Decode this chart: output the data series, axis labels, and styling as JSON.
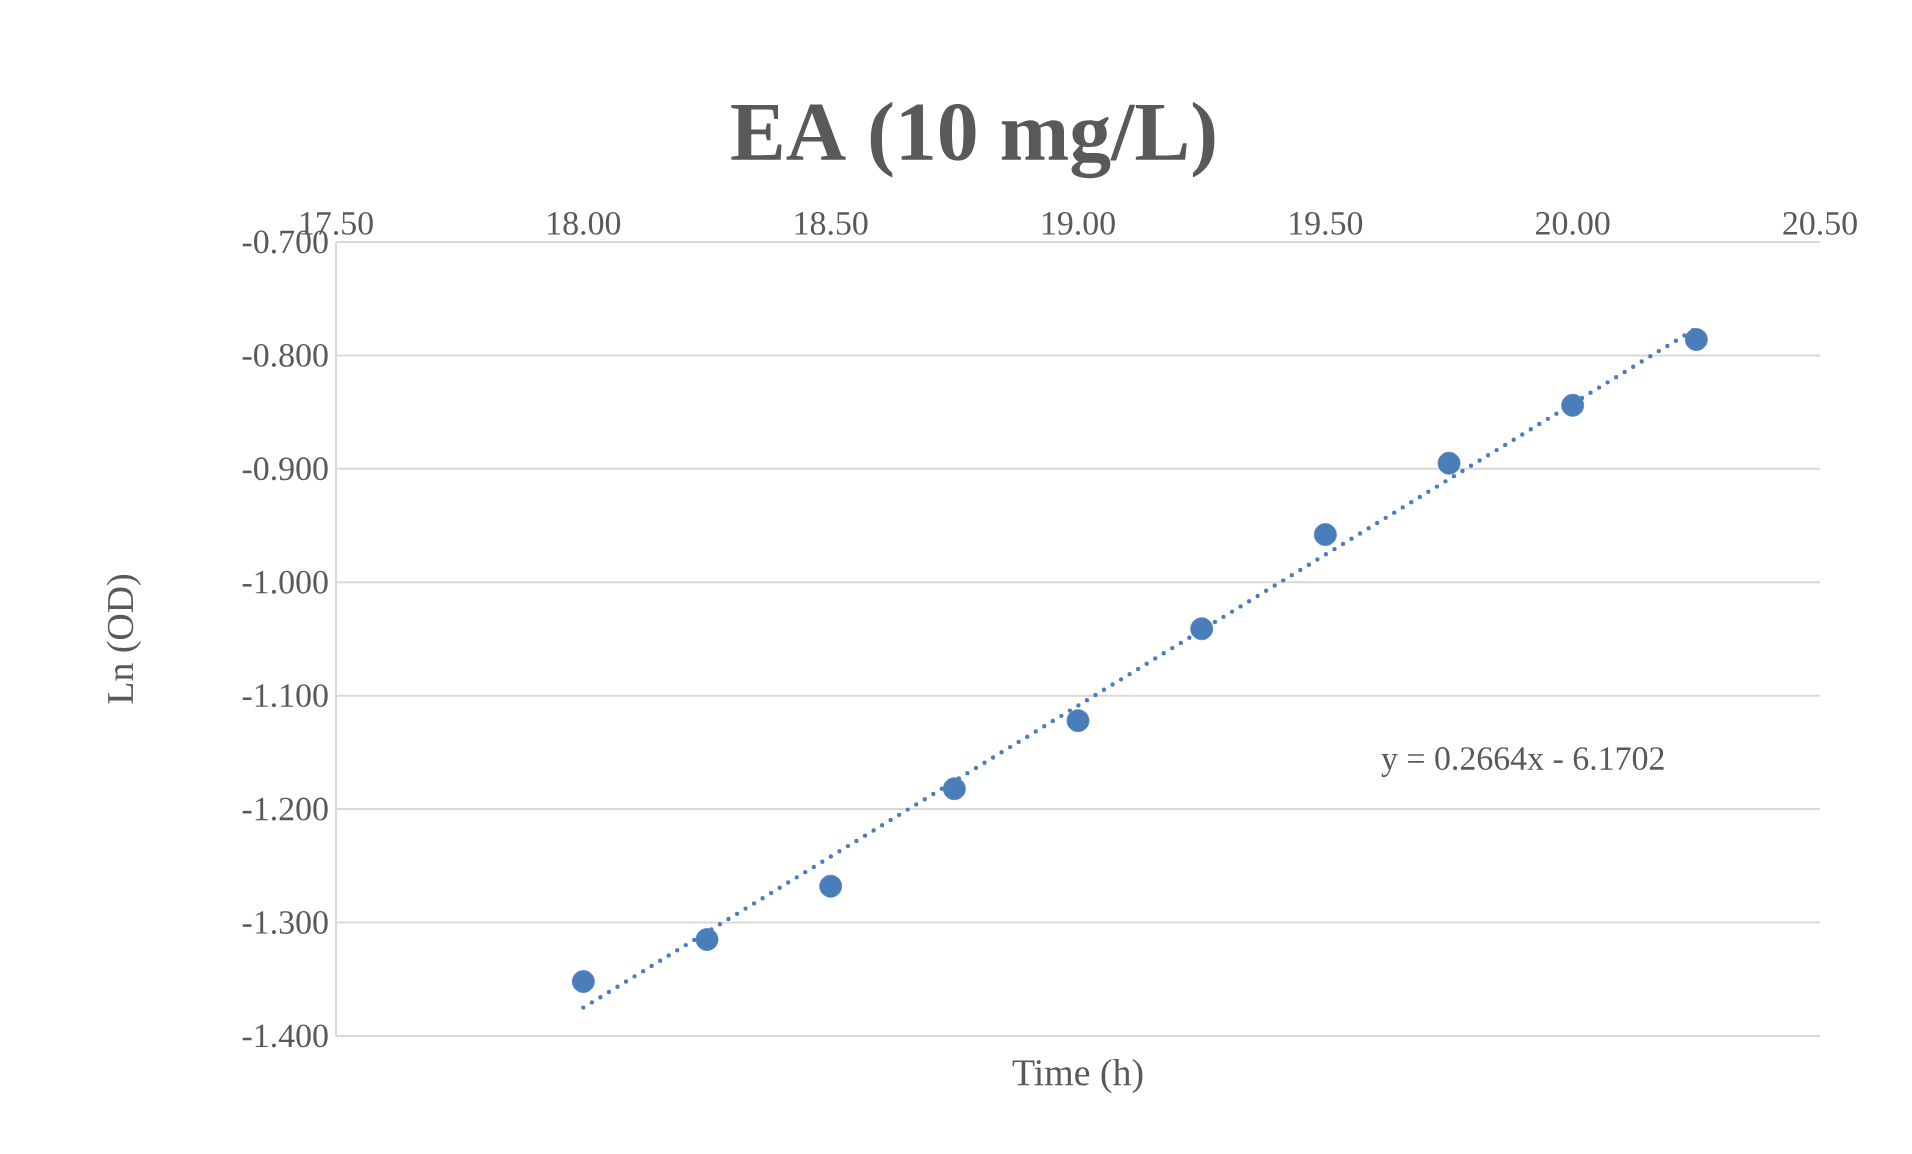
{
  "chart_data": {
    "type": "scatter",
    "title": "EA (10 mg/L)",
    "xlabel": "Time (h)",
    "ylabel": "Ln (OD)",
    "series": [
      {
        "color": "#4a7ebb",
        "x": [
          18.0,
          18.25,
          18.5,
          18.75,
          19.0,
          19.25,
          19.5,
          19.75,
          20.0,
          20.25
        ],
        "values": [
          -1.352,
          -1.315,
          -1.268,
          -1.182,
          -1.122,
          -1.041,
          -0.958,
          -0.895,
          -0.844,
          -0.786
        ]
      },
      {
        "type": "line",
        "color": "#4a7ebb",
        "line_style": "dotted",
        "marker": "none",
        "x": [
          18.0,
          20.25
        ],
        "values": [
          -1.375,
          -0.776
        ]
      }
    ],
    "xlim": [
      17.5,
      20.5
    ],
    "xticks": [
      {
        "value": 17.5,
        "label": "17.50"
      },
      {
        "value": 18.0,
        "label": "18.00"
      },
      {
        "value": 18.5,
        "label": "18.50"
      },
      {
        "value": 19.0,
        "label": "19.00"
      },
      {
        "value": 19.5,
        "label": "19.50"
      },
      {
        "value": 20.0,
        "label": "20.00"
      },
      {
        "value": 20.5,
        "label": "20.50"
      }
    ],
    "ylim": [
      -1.4,
      -0.7
    ],
    "yticks": [
      {
        "value": -1.4,
        "label": "-1.400"
      },
      {
        "value": -1.3,
        "label": "-1.300"
      },
      {
        "value": -1.2,
        "label": "-1.200"
      },
      {
        "value": -1.1,
        "label": "-1.100"
      },
      {
        "value": -1.0,
        "label": "-1.000"
      },
      {
        "value": -0.9,
        "label": "-0.900"
      },
      {
        "value": -0.8,
        "label": "-0.800"
      },
      {
        "value": -0.7,
        "label": "-0.700"
      }
    ],
    "grid": "y",
    "marker": "circle",
    "annotations": [
      "y = 0.2664x - 6.1702"
    ]
  }
}
